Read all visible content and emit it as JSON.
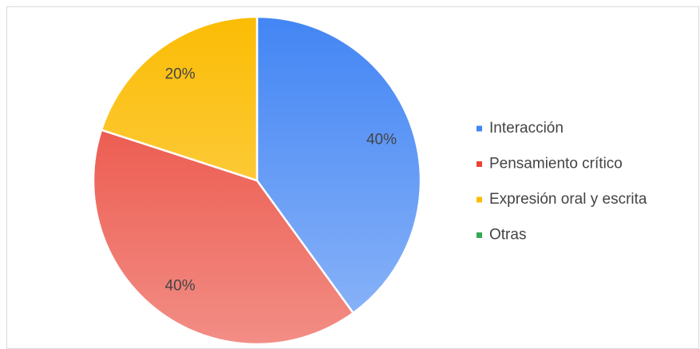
{
  "chart_data": {
    "type": "pie",
    "categories": [
      "Interacción",
      "Pensamiento crítico",
      "Expresión oral y escrita",
      "Otras"
    ],
    "values": [
      40,
      40,
      20,
      0
    ],
    "value_labels": [
      "40%",
      "40%",
      "20%",
      null
    ],
    "colors": [
      "#4285f4",
      "#ea4335",
      "#fbbc04",
      "#34a853"
    ],
    "legend": "right"
  }
}
